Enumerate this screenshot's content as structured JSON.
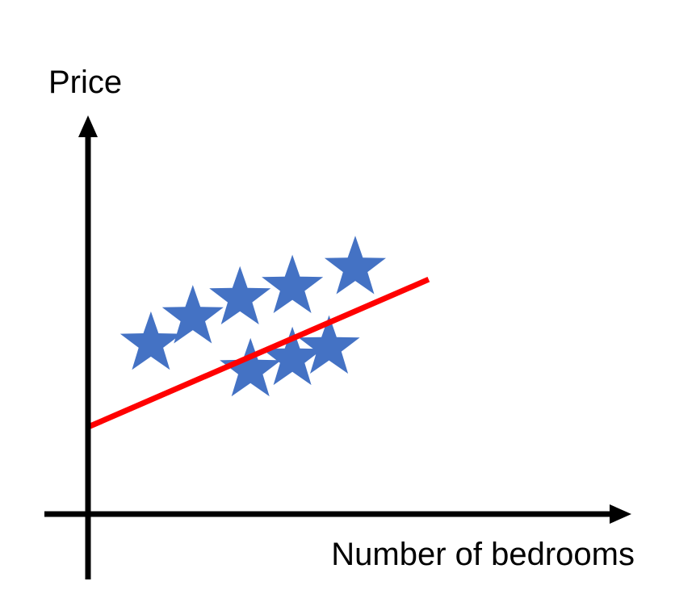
{
  "chart_data": {
    "type": "scatter",
    "title": "",
    "xlabel": "Number of bedrooms",
    "ylabel": "Price",
    "xlim": [
      0,
      10
    ],
    "ylim": [
      0,
      10
    ],
    "grid": false,
    "legend": "none",
    "tick_labels": false,
    "marker": "star",
    "series": [
      {
        "points": [
          {
            "x": 1.2,
            "y": 4.5
          },
          {
            "x": 2.0,
            "y": 5.2
          },
          {
            "x": 2.9,
            "y": 5.7
          },
          {
            "x": 3.1,
            "y": 3.8
          },
          {
            "x": 3.9,
            "y": 4.1
          },
          {
            "x": 3.9,
            "y": 6.0
          },
          {
            "x": 4.6,
            "y": 4.4
          },
          {
            "x": 5.1,
            "y": 6.5
          }
        ]
      }
    ],
    "trend_line": {
      "x": [
        0,
        6.5
      ],
      "y": [
        2.3,
        6.2
      ]
    },
    "colors": {
      "points": "#4472c4",
      "trend_line": "#ff0000",
      "axes": "#000000"
    }
  }
}
